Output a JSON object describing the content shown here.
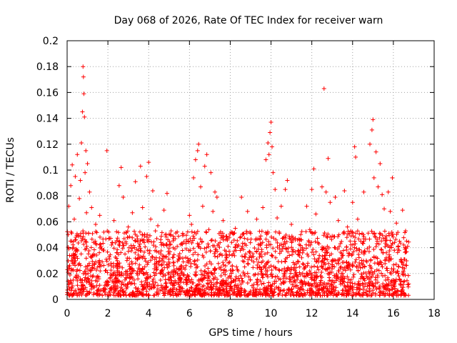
{
  "chart_data": {
    "type": "scatter",
    "title": "Day 068 of 2026, Rate Of TEC Index for receiver warn",
    "xlabel": "GPS time / hours",
    "ylabel": "ROTI / TECUs",
    "xlim": [
      0,
      18
    ],
    "ylim": [
      0,
      0.2
    ],
    "grid": true,
    "marker": "+",
    "color": "#ff0000",
    "x_ticks": [
      0,
      2,
      4,
      6,
      8,
      10,
      12,
      14,
      16,
      18
    ],
    "x_tick_labels": [
      "0",
      "2",
      "4",
      "6",
      "8",
      "10",
      "12",
      "14",
      "16",
      "18"
    ],
    "y_ticks": [
      0,
      0.02,
      0.04,
      0.06,
      0.08,
      0.1,
      0.12,
      0.14,
      0.16,
      0.18,
      0.2
    ],
    "y_tick_labels": [
      "0",
      "0.02",
      "0.04",
      "0.06",
      "0.08",
      "0.1",
      "0.12",
      "0.14",
      "0.16",
      "0.18",
      "0.2"
    ],
    "series": [
      {
        "name": "ROTI",
        "points": [
          [
            0.05,
            0.021
          ],
          [
            0.08,
            0.072
          ],
          [
            0.12,
            0.034
          ],
          [
            0.18,
            0.088
          ],
          [
            0.22,
            0.045
          ],
          [
            0.25,
            0.104
          ],
          [
            0.3,
            0.015
          ],
          [
            0.35,
            0.062
          ],
          [
            0.4,
            0.095
          ],
          [
            0.45,
            0.038
          ],
          [
            0.5,
            0.112
          ],
          [
            0.55,
            0.027
          ],
          [
            0.6,
            0.078
          ],
          [
            0.65,
            0.092
          ],
          [
            0.7,
            0.121
          ],
          [
            0.75,
            0.145
          ],
          [
            0.78,
            0.18
          ],
          [
            0.8,
            0.172
          ],
          [
            0.82,
            0.159
          ],
          [
            0.85,
            0.141
          ],
          [
            0.88,
            0.098
          ],
          [
            0.92,
            0.115
          ],
          [
            0.95,
            0.067
          ],
          [
            1.0,
            0.105
          ],
          [
            1.05,
            0.051
          ],
          [
            1.1,
            0.083
          ],
          [
            1.15,
            0.033
          ],
          [
            1.2,
            0.071
          ],
          [
            1.3,
            0.044
          ],
          [
            1.4,
            0.058
          ],
          [
            1.5,
            0.025
          ],
          [
            1.6,
            0.065
          ],
          [
            1.7,
            0.039
          ],
          [
            1.8,
            0.052
          ],
          [
            1.95,
            0.115
          ],
          [
            2.05,
            0.047
          ],
          [
            2.15,
            0.028
          ],
          [
            2.3,
            0.061
          ],
          [
            2.45,
            0.036
          ],
          [
            2.55,
            0.088
          ],
          [
            2.65,
            0.102
          ],
          [
            2.75,
            0.079
          ],
          [
            2.9,
            0.043
          ],
          [
            3.0,
            0.056
          ],
          [
            3.1,
            0.024
          ],
          [
            3.2,
            0.067
          ],
          [
            3.35,
            0.091
          ],
          [
            3.5,
            0.038
          ],
          [
            3.6,
            0.103
          ],
          [
            3.7,
            0.071
          ],
          [
            3.8,
            0.049
          ],
          [
            3.9,
            0.095
          ],
          [
            4.0,
            0.106
          ],
          [
            4.1,
            0.062
          ],
          [
            4.2,
            0.084
          ],
          [
            4.3,
            0.031
          ],
          [
            4.45,
            0.057
          ],
          [
            4.6,
            0.044
          ],
          [
            4.75,
            0.069
          ],
          [
            4.9,
            0.082
          ],
          [
            5.0,
            0.035
          ],
          [
            5.1,
            0.053
          ],
          [
            5.25,
            0.022
          ],
          [
            5.4,
            0.041
          ],
          [
            5.55,
            0.017
          ],
          [
            5.7,
            0.029
          ],
          [
            5.85,
            0.046
          ],
          [
            6.0,
            0.065
          ],
          [
            6.1,
            0.058
          ],
          [
            6.2,
            0.094
          ],
          [
            6.3,
            0.108
          ],
          [
            6.4,
            0.115
          ],
          [
            6.45,
            0.12
          ],
          [
            6.55,
            0.087
          ],
          [
            6.65,
            0.072
          ],
          [
            6.75,
            0.103
          ],
          [
            6.85,
            0.112
          ],
          [
            6.95,
            0.054
          ],
          [
            7.05,
            0.098
          ],
          [
            7.15,
            0.068
          ],
          [
            7.25,
            0.083
          ],
          [
            7.35,
            0.079
          ],
          [
            7.5,
            0.044
          ],
          [
            7.65,
            0.061
          ],
          [
            7.8,
            0.037
          ],
          [
            7.95,
            0.048
          ],
          [
            8.1,
            0.026
          ],
          [
            8.25,
            0.055
          ],
          [
            8.4,
            0.042
          ],
          [
            8.55,
            0.079
          ],
          [
            8.7,
            0.033
          ],
          [
            8.85,
            0.068
          ],
          [
            9.0,
            0.051
          ],
          [
            9.15,
            0.029
          ],
          [
            9.3,
            0.062
          ],
          [
            9.45,
            0.047
          ],
          [
            9.6,
            0.071
          ],
          [
            9.75,
            0.108
          ],
          [
            9.85,
            0.121
          ],
          [
            9.9,
            0.112
          ],
          [
            9.95,
            0.129
          ],
          [
            10.0,
            0.137
          ],
          [
            10.05,
            0.118
          ],
          [
            10.1,
            0.098
          ],
          [
            10.2,
            0.085
          ],
          [
            10.3,
            0.063
          ],
          [
            10.4,
            0.052
          ],
          [
            10.5,
            0.072
          ],
          [
            10.6,
            0.041
          ],
          [
            10.7,
            0.085
          ],
          [
            10.8,
            0.092
          ],
          [
            10.9,
            0.034
          ],
          [
            11.0,
            0.058
          ],
          [
            11.15,
            0.027
          ],
          [
            11.3,
            0.046
          ],
          [
            11.45,
            0.019
          ],
          [
            11.6,
            0.038
          ],
          [
            11.75,
            0.072
          ],
          [
            11.9,
            0.054
          ],
          [
            12.0,
            0.085
          ],
          [
            12.1,
            0.101
          ],
          [
            12.2,
            0.066
          ],
          [
            12.35,
            0.043
          ],
          [
            12.5,
            0.087
          ],
          [
            12.6,
            0.163
          ],
          [
            12.7,
            0.083
          ],
          [
            12.8,
            0.109
          ],
          [
            12.9,
            0.075
          ],
          [
            13.0,
            0.049
          ],
          [
            13.15,
            0.079
          ],
          [
            13.3,
            0.061
          ],
          [
            13.45,
            0.032
          ],
          [
            13.6,
            0.084
          ],
          [
            13.75,
            0.056
          ],
          [
            13.9,
            0.039
          ],
          [
            14.0,
            0.075
          ],
          [
            14.1,
            0.118
          ],
          [
            14.15,
            0.11
          ],
          [
            14.25,
            0.062
          ],
          [
            14.4,
            0.045
          ],
          [
            14.55,
            0.083
          ],
          [
            14.7,
            0.029
          ],
          [
            14.85,
            0.12
          ],
          [
            14.95,
            0.131
          ],
          [
            15.0,
            0.139
          ],
          [
            15.05,
            0.094
          ],
          [
            15.15,
            0.114
          ],
          [
            15.25,
            0.087
          ],
          [
            15.35,
            0.105
          ],
          [
            15.45,
            0.081
          ],
          [
            15.55,
            0.07
          ],
          [
            15.65,
            0.049
          ],
          [
            15.75,
            0.083
          ],
          [
            15.85,
            0.068
          ],
          [
            15.95,
            0.094
          ],
          [
            16.05,
            0.038
          ],
          [
            16.15,
            0.059
          ],
          [
            16.3,
            0.045
          ],
          [
            16.45,
            0.069
          ],
          [
            16.6,
            0.053
          ],
          [
            16.7,
            0.041
          ],
          [
            16.75,
            0.012
          ]
        ]
      }
    ]
  }
}
